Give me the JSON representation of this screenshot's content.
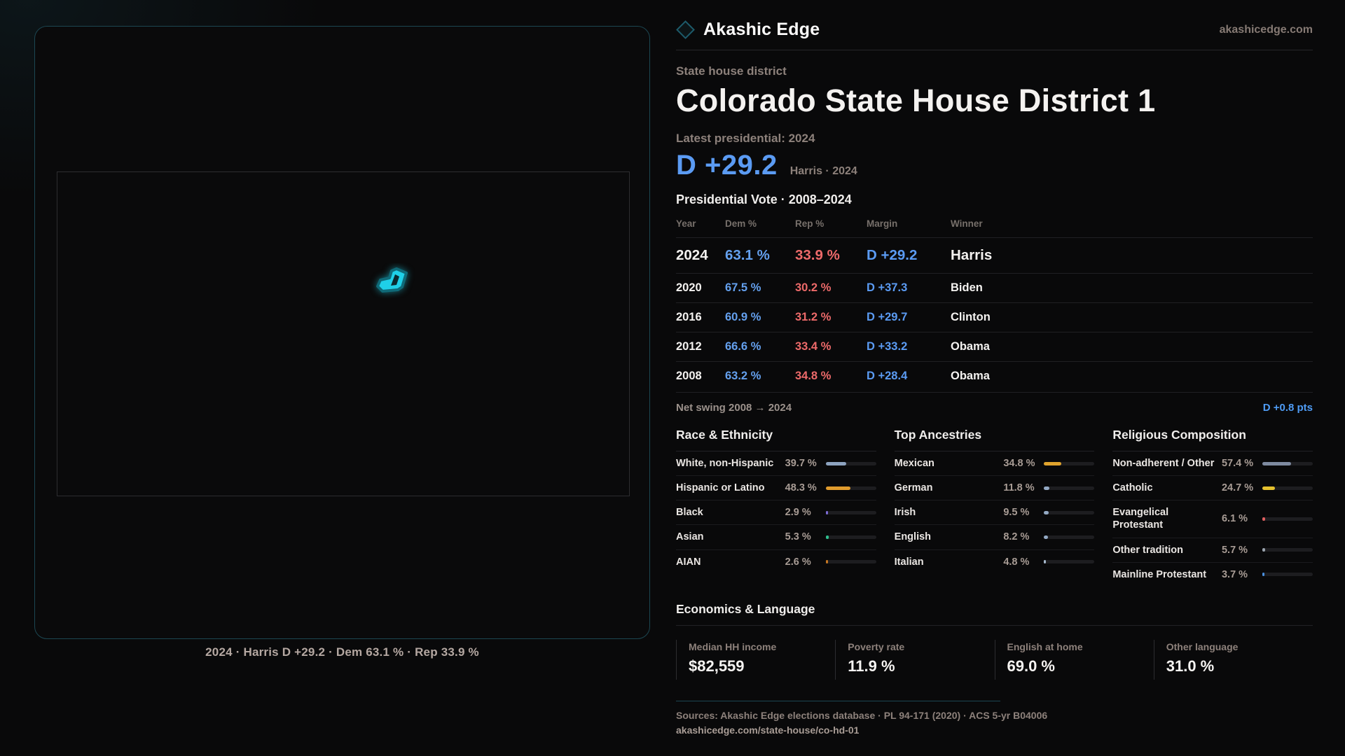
{
  "brand": {
    "name": "Akashic Edge",
    "site": "akashicedge.com",
    "accent_teal": "#1c4752",
    "dem_blue": "#5b9bf3",
    "rep_red": "#ed6a6a"
  },
  "map": {
    "caption": "2024 · Harris D +29.2 · Dem 63.1 % · Rep 33.9 %",
    "district_color": "#1fd0e8"
  },
  "header": {
    "kicker": "State house district",
    "title": "Colorado State House District 1",
    "latest_label": "Latest presidential: 2024",
    "headline_margin": "D +29.2",
    "headline_sub": "Harris · 2024"
  },
  "vote_table": {
    "title": "Presidential Vote · 2008–2024",
    "columns": [
      "Year",
      "Dem %",
      "Rep %",
      "Margin",
      "Winner"
    ],
    "rows": [
      {
        "year": "2024",
        "dem": "63.1 %",
        "rep": "33.9 %",
        "margin": "D +29.2",
        "winner": "Harris",
        "big": true
      },
      {
        "year": "2020",
        "dem": "67.5 %",
        "rep": "30.2 %",
        "margin": "D +37.3",
        "winner": "Biden",
        "big": false
      },
      {
        "year": "2016",
        "dem": "60.9 %",
        "rep": "31.2 %",
        "margin": "D +29.7",
        "winner": "Clinton",
        "big": false
      },
      {
        "year": "2012",
        "dem": "66.6 %",
        "rep": "33.4 %",
        "margin": "D +33.2",
        "winner": "Obama",
        "big": false
      },
      {
        "year": "2008",
        "dem": "63.2 %",
        "rep": "34.8 %",
        "margin": "D +28.4",
        "winner": "Obama",
        "big": false
      }
    ],
    "net_swing_label": "Net swing 2008 → 2024",
    "net_swing_value": "D +0.8 pts"
  },
  "demographics": [
    {
      "title": "Race & Ethnicity",
      "rows": [
        {
          "label": "White, non-Hispanic",
          "value": "39.7 %",
          "pct": 39.7,
          "color": "#8da3c0"
        },
        {
          "label": "Hispanic or Latino",
          "value": "48.3 %",
          "pct": 48.3,
          "color": "#e09b2d"
        },
        {
          "label": "Black",
          "value": "2.9 %",
          "pct": 2.9,
          "color": "#7c6bd4"
        },
        {
          "label": "Asian",
          "value": "5.3 %",
          "pct": 5.3,
          "color": "#2fbf8f"
        },
        {
          "label": "AIAN",
          "value": "2.6 %",
          "pct": 2.6,
          "color": "#c77722"
        }
      ]
    },
    {
      "title": "Top Ancestries",
      "rows": [
        {
          "label": "Mexican",
          "value": "34.8 %",
          "pct": 34.8,
          "color": "#e0a32d"
        },
        {
          "label": "German",
          "value": "11.8 %",
          "pct": 11.8,
          "color": "#93a9c4"
        },
        {
          "label": "Irish",
          "value": "9.5 %",
          "pct": 9.5,
          "color": "#93a9c4"
        },
        {
          "label": "English",
          "value": "8.2 %",
          "pct": 8.2,
          "color": "#93a9c4"
        },
        {
          "label": "Italian",
          "value": "4.8 %",
          "pct": 4.8,
          "color": "#a7bace"
        }
      ]
    },
    {
      "title": "Religious Composition",
      "rows": [
        {
          "label": "Non-adherent / Other",
          "value": "57.4 %",
          "pct": 57.4,
          "color": "#7e8aa0"
        },
        {
          "label": "Catholic",
          "value": "24.7 %",
          "pct": 24.7,
          "color": "#e5c12e"
        },
        {
          "label": "Evangelical Protestant",
          "value": "6.1 %",
          "pct": 6.1,
          "color": "#e06060"
        },
        {
          "label": "Other tradition",
          "value": "5.7 %",
          "pct": 5.7,
          "color": "#9aa3ad"
        },
        {
          "label": "Mainline Protestant",
          "value": "3.7 %",
          "pct": 3.7,
          "color": "#4a90e0"
        }
      ]
    }
  ],
  "economics": {
    "title": "Economics & Language",
    "stats": [
      {
        "label": "Median HH income",
        "value": "$82,559"
      },
      {
        "label": "Poverty rate",
        "value": "11.9 %"
      },
      {
        "label": "English at home",
        "value": "69.0 %"
      },
      {
        "label": "Other language",
        "value": "31.0 %"
      }
    ]
  },
  "footer": {
    "sources": "Sources: Akashic Edge elections database · PL 94-171 (2020) · ACS 5-yr B04006",
    "url": "akashicedge.com/state-house/co-hd-01"
  }
}
